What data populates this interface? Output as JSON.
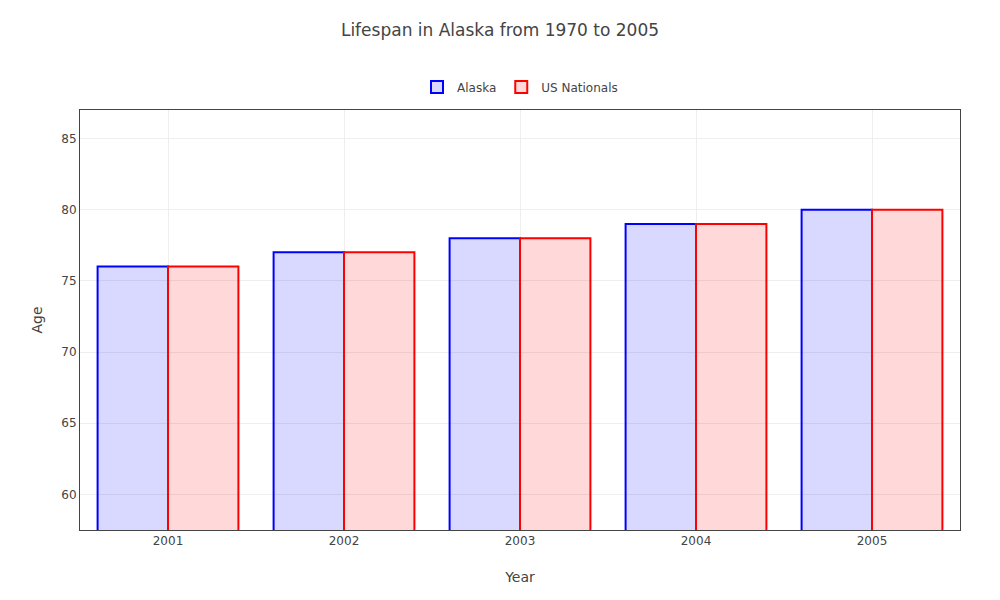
{
  "chart_data": {
    "type": "bar",
    "title": "Lifespan in Alaska from 1970 to 2005",
    "xlabel": "Year",
    "ylabel": "Age",
    "categories": [
      "2001",
      "2002",
      "2003",
      "2004",
      "2005"
    ],
    "series": [
      {
        "name": "Alaska",
        "color": "#0000ff",
        "values": [
          76,
          77,
          78,
          79,
          80
        ]
      },
      {
        "name": "US Nationals",
        "color": "#ff0000",
        "values": [
          76,
          77,
          78,
          79,
          80
        ]
      }
    ],
    "ylim": [
      57.5,
      87
    ],
    "yticks": [
      60,
      65,
      70,
      75,
      80,
      85
    ],
    "grid": true,
    "legend": "top"
  }
}
